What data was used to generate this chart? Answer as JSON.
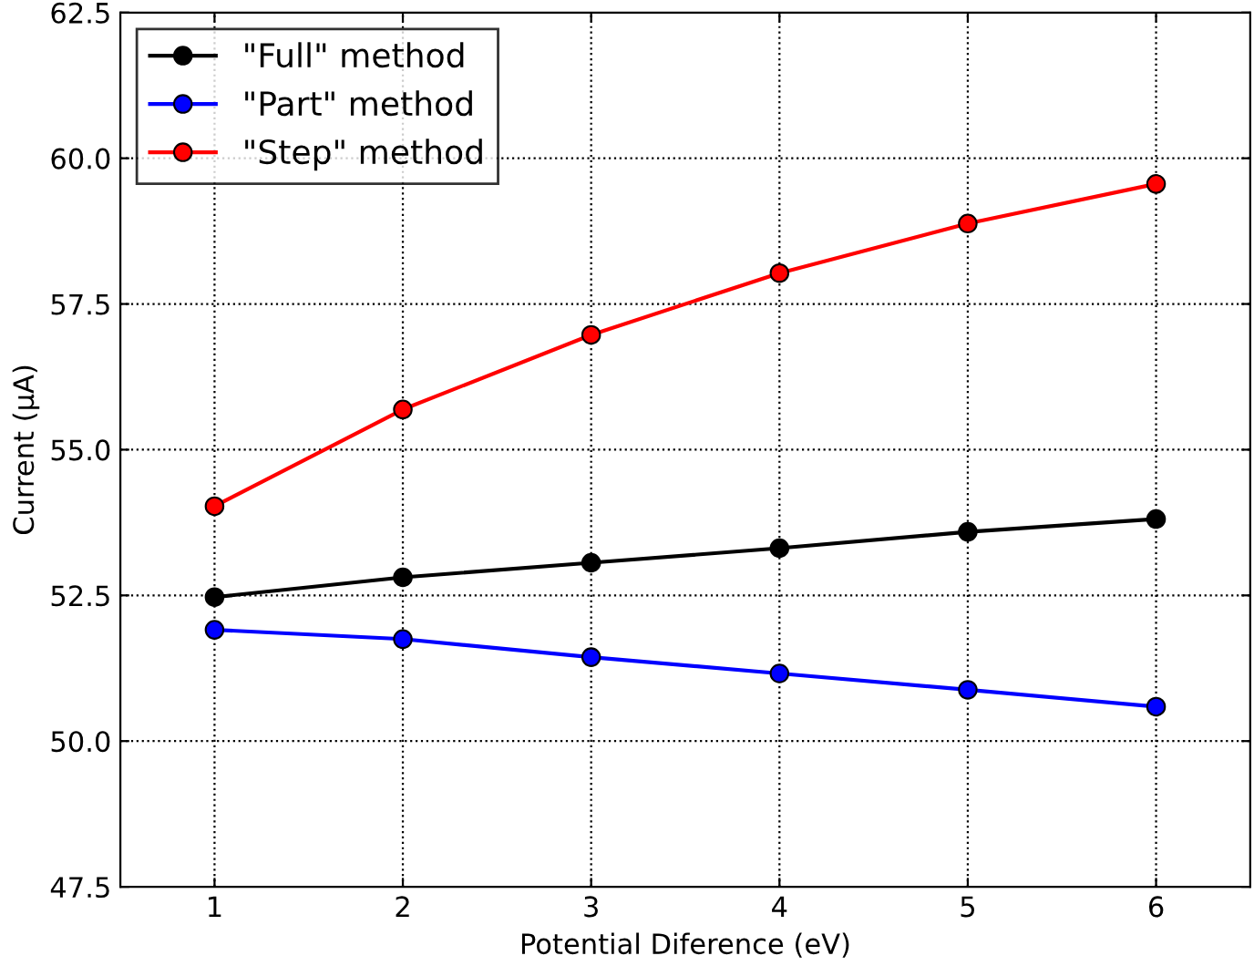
{
  "chart_data": {
    "type": "line",
    "xlabel": "Potential Diference (eV)",
    "ylabel": "Current (μA)",
    "x": [
      1,
      2,
      3,
      4,
      5,
      6
    ],
    "series": [
      {
        "name": "\"Full\" method",
        "color": "#000000",
        "values": [
          52.47,
          52.81,
          53.06,
          53.31,
          53.59,
          53.81
        ]
      },
      {
        "name": "\"Part\" method",
        "color": "#0000ff",
        "values": [
          51.91,
          51.75,
          51.44,
          51.16,
          50.88,
          50.59
        ]
      },
      {
        "name": "\"Step\" method",
        "color": "#ff0000",
        "values": [
          54.03,
          55.69,
          56.97,
          58.03,
          58.88,
          59.56
        ]
      }
    ],
    "xlim": [
      0.5,
      6.5
    ],
    "xticks": [
      1,
      2,
      3,
      4,
      5,
      6
    ],
    "ylim": [
      47.5,
      62.5
    ],
    "yticks": [
      47.5,
      {
        "value": 50,
        "label": "50.0"
      },
      52.5,
      {
        "value": 55,
        "label": "55.0"
      },
      57.5,
      {
        "value": 60,
        "label": "60.0"
      },
      62.5
    ],
    "grid": true,
    "legend": "top left",
    "marker": "circle",
    "line_style": "solid"
  }
}
